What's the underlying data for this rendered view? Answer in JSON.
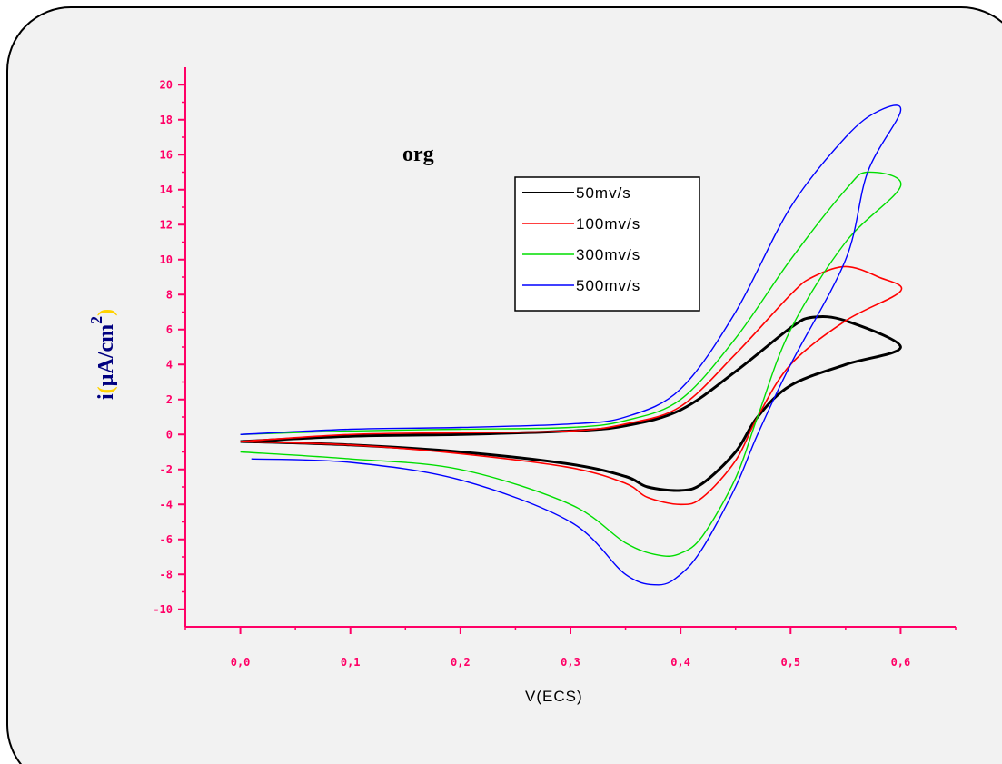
{
  "chart_data": {
    "type": "line",
    "annotation": "org",
    "xlabel": "V(ECS)",
    "ylabel": {
      "prefix": "i",
      "open": "(",
      "unit": "µA/cm",
      "sup": "2",
      "close": ")"
    },
    "xlim": [
      -0.05,
      0.65
    ],
    "ylim": [
      -11,
      21
    ],
    "xticks": [
      0.0,
      0.1,
      0.2,
      0.3,
      0.4,
      0.5,
      0.6
    ],
    "xtick_labels": [
      "0,0",
      "0,1",
      "0,2",
      "0,3",
      "0,4",
      "0,5",
      "0,6"
    ],
    "yticks": [
      -10,
      -8,
      -6,
      -4,
      -2,
      0,
      2,
      4,
      6,
      8,
      10,
      12,
      14,
      16,
      18,
      20
    ],
    "ytick_labels": [
      "-10",
      "-8",
      "-6",
      "-4",
      "-2",
      "0",
      "2",
      "4",
      "6",
      "8",
      "10",
      "12",
      "14",
      "16",
      "18",
      "20"
    ],
    "legend_position": "top-right",
    "grid": false,
    "colors": {
      "axis": "#ff0066",
      "ylabel_i": "#000080",
      "ylabel_paren": "#ffd200",
      "ylabel_unit": "#000080",
      "background": "#f2f2f2"
    },
    "series": [
      {
        "name": "50mv/s",
        "color": "#000000",
        "width": 3,
        "x": [
          0.0,
          0.1,
          0.2,
          0.3,
          0.35,
          0.4,
          0.45,
          0.5,
          0.52,
          0.55,
          0.6,
          0.55,
          0.5,
          0.47,
          0.45,
          0.42,
          0.4,
          0.37,
          0.35,
          0.3,
          0.2,
          0.1,
          0.0
        ],
        "y": [
          -0.4,
          -0.1,
          0.0,
          0.2,
          0.5,
          1.4,
          3.6,
          6.1,
          6.7,
          6.5,
          5.0,
          4.0,
          2.8,
          1.0,
          -1.0,
          -2.8,
          -3.2,
          -3.0,
          -2.4,
          -1.7,
          -1.0,
          -0.6,
          -0.4
        ]
      },
      {
        "name": "100mv/s",
        "color": "#ff0000",
        "width": 1.6,
        "x": [
          0.0,
          0.1,
          0.2,
          0.3,
          0.35,
          0.4,
          0.45,
          0.5,
          0.52,
          0.55,
          0.58,
          0.6,
          0.55,
          0.5,
          0.47,
          0.45,
          0.42,
          0.4,
          0.37,
          0.35,
          0.3,
          0.2,
          0.1,
          0.0
        ],
        "y": [
          -0.4,
          0.0,
          0.1,
          0.2,
          0.6,
          1.6,
          4.6,
          8.0,
          9.0,
          9.6,
          9.0,
          8.2,
          6.5,
          4.0,
          1.0,
          -1.5,
          -3.6,
          -4.0,
          -3.6,
          -2.8,
          -1.9,
          -1.1,
          -0.6,
          -0.4
        ]
      },
      {
        "name": "300mv/s",
        "color": "#00dd00",
        "width": 1.4,
        "x": [
          0.0,
          0.1,
          0.2,
          0.3,
          0.35,
          0.4,
          0.45,
          0.5,
          0.55,
          0.57,
          0.6,
          0.55,
          0.5,
          0.47,
          0.45,
          0.42,
          0.4,
          0.38,
          0.35,
          0.3,
          0.2,
          0.1,
          0.0
        ],
        "y": [
          0.0,
          0.2,
          0.3,
          0.4,
          0.8,
          2.0,
          5.5,
          10.0,
          14.0,
          15.0,
          14.2,
          11.0,
          6.0,
          1.0,
          -2.5,
          -5.8,
          -6.8,
          -6.9,
          -6.2,
          -4.0,
          -2.0,
          -1.4,
          -1.0
        ]
      },
      {
        "name": "500mv/s",
        "color": "#0000ff",
        "width": 1.4,
        "x": [
          0.0,
          0.1,
          0.2,
          0.3,
          0.35,
          0.4,
          0.45,
          0.5,
          0.55,
          0.58,
          0.6,
          0.57,
          0.55,
          0.5,
          0.47,
          0.45,
          0.42,
          0.4,
          0.38,
          0.35,
          0.3,
          0.2,
          0.1,
          0.01
        ],
        "y": [
          0.0,
          0.3,
          0.4,
          0.6,
          1.0,
          2.6,
          7.0,
          13.0,
          17.0,
          18.5,
          18.5,
          15.0,
          10.0,
          4.0,
          0.0,
          -3.0,
          -6.5,
          -8.0,
          -8.6,
          -8.0,
          -5.0,
          -2.6,
          -1.6,
          -1.4
        ]
      }
    ]
  }
}
